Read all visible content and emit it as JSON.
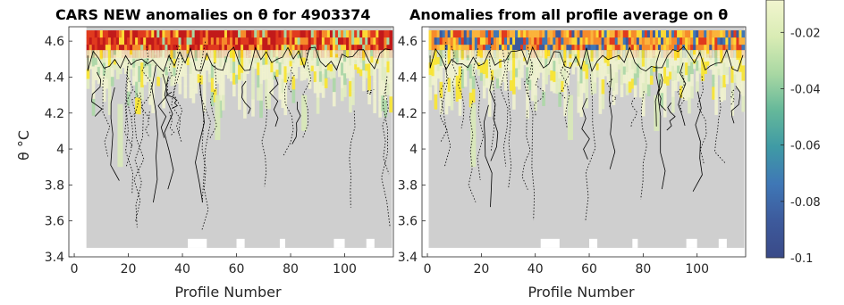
{
  "chart_data": [
    {
      "type": "heatmap",
      "title": "CARS NEW anomalies on θ for 4903374",
      "xlabel": "Profile Number",
      "ylabel": "θ °C",
      "xlim": [
        -2,
        118
      ],
      "ylim": [
        3.4,
        4.68
      ],
      "x_ticks": [
        0,
        20,
        40,
        60,
        80,
        100
      ],
      "y_ticks": [
        3.4,
        3.6,
        3.8,
        4,
        4.2,
        4.4,
        4.6
      ],
      "y_tick_labels": [
        "3.4",
        "3.6",
        "3.8",
        "4",
        "4.2",
        "4.4",
        "4.6"
      ],
      "profile_start": 5,
      "profile_end": 117,
      "base_bottom": 3.45,
      "overlays": "contour lines (solid and dotted)",
      "upper_band": "mostly positive anomalies (orange/red) above 4.55",
      "grid": false
    },
    {
      "type": "heatmap",
      "title": "Anomalies from all profile average on θ",
      "xlabel": "Profile Number",
      "ylabel": "",
      "xlim": [
        -2,
        118
      ],
      "ylim": [
        3.4,
        4.68
      ],
      "x_ticks": [
        0,
        20,
        40,
        60,
        80,
        100
      ],
      "y_ticks": [
        3.4,
        3.6,
        3.8,
        4,
        4.2,
        4.4,
        4.6
      ],
      "y_tick_labels": [
        "3.4",
        "3.6",
        "3.8",
        "4",
        "4.2",
        "4.4",
        "4.6"
      ],
      "profile_start": 1,
      "profile_end": 117,
      "base_bottom": 3.45,
      "overlays": "contour lines (solid and dotted)",
      "upper_band": "mixed positive (orange) and negative (blue) above 4.55",
      "grid": false
    }
  ],
  "colorbar": {
    "ticks": [
      -0.02,
      -0.04,
      -0.06,
      -0.08,
      -0.1
    ],
    "tick_labels": [
      "-0.02",
      "-0.04",
      "-0.06",
      "-0.08",
      "-0.1"
    ],
    "colors_top_to_bottom": [
      "#f2f5cf",
      "#d9ecb4",
      "#a9d8a3",
      "#65b89a",
      "#3f9aa5",
      "#3f77b6",
      "#3d5a9c",
      "#3a4a88"
    ]
  }
}
